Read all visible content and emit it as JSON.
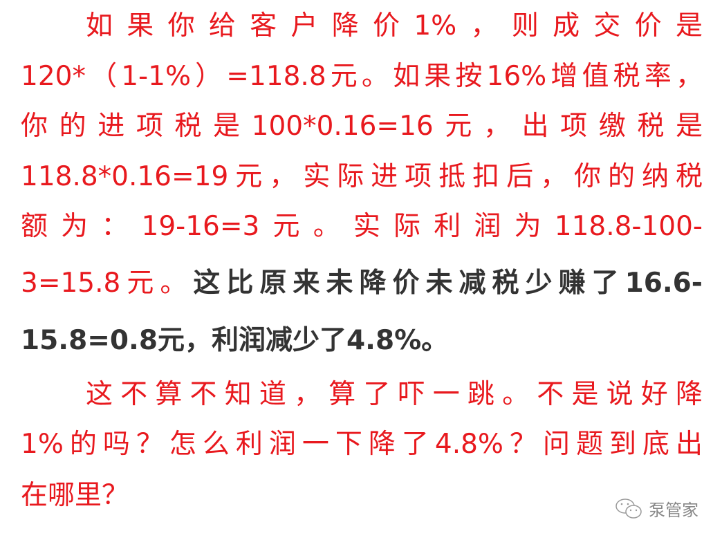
{
  "lines": [
    {
      "text": "如果你给客户降价1%，则成交价是"
    },
    {
      "text": "120*（1-1%）=118.8元。如果按16%增值税率，"
    },
    {
      "text": "你的进项税是100*0.16=16元，出项缴税是"
    },
    {
      "text": "118.8*0.16=19元，实际进项抵扣后，你的纳税"
    },
    {
      "text": "额为：19-16=3元。实际利润为118.8-100-"
    },
    {
      "red": "3=15.8元。",
      "bold": "这比原来未降价未减税少赚了16.6-"
    },
    {
      "bold": "15.8=0.8元，利润减少了4.8%。"
    },
    {
      "text": "这不算不知道，算了吓一跳。不是说好降"
    },
    {
      "text": "1%的吗？怎么利润一下降了4.8%？问题到底出"
    },
    {
      "text": "在哪里？"
    }
  ],
  "watermark": {
    "icon": "wechat-icon",
    "text": "泵管家"
  },
  "colors": {
    "red": "#e8191e",
    "dark": "#333333"
  }
}
